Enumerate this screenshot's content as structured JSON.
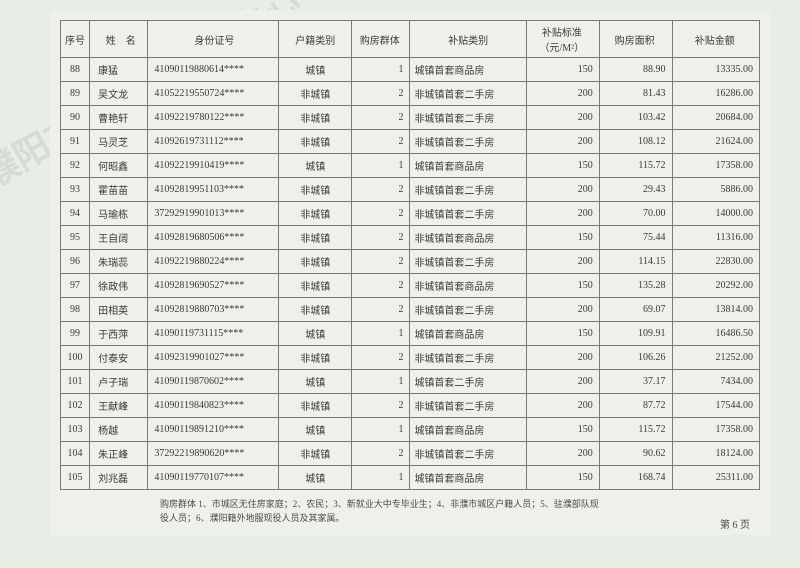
{
  "watermarks": [
    "濮阳市房地产管理中心",
    "濮阳市房地产管理中心",
    "濮阳市房"
  ],
  "headers": {
    "seq": "序号",
    "name": "姓　名",
    "id": "身份证号",
    "hukou": "户籍类别",
    "group": "购房群体",
    "subtype": "补贴类别",
    "std": "补贴标准（元/M²）",
    "area": "购房面积",
    "amt": "补贴金额"
  },
  "rows": [
    {
      "seq": "88",
      "name": "康猛",
      "id": "41090119880614****",
      "hukou": "城镇",
      "group": "1",
      "subtype": "城镇首套商品房",
      "std": "150",
      "area": "88.90",
      "amt": "13335.00"
    },
    {
      "seq": "89",
      "name": "吴文龙",
      "id": "41052219550724****",
      "hukou": "非城镇",
      "group": "2",
      "subtype": "非城镇首套二手房",
      "std": "200",
      "area": "81.43",
      "amt": "16286.00"
    },
    {
      "seq": "90",
      "name": "曹艳轩",
      "id": "41092219780122****",
      "hukou": "非城镇",
      "group": "2",
      "subtype": "非城镇首套二手房",
      "std": "200",
      "area": "103.42",
      "amt": "20684.00"
    },
    {
      "seq": "91",
      "name": "马灵芝",
      "id": "41092619731112****",
      "hukou": "非城镇",
      "group": "2",
      "subtype": "非城镇首套二手房",
      "std": "200",
      "area": "108.12",
      "amt": "21624.00"
    },
    {
      "seq": "92",
      "name": "何昭鑫",
      "id": "41092219910419****",
      "hukou": "城镇",
      "group": "1",
      "subtype": "城镇首套商品房",
      "std": "150",
      "area": "115.72",
      "amt": "17358.00"
    },
    {
      "seq": "93",
      "name": "霍苗苗",
      "id": "41092819951103****",
      "hukou": "非城镇",
      "group": "2",
      "subtype": "非城镇首套二手房",
      "std": "200",
      "area": "29.43",
      "amt": "5886.00"
    },
    {
      "seq": "94",
      "name": "马瑜栋",
      "id": "37292919901013****",
      "hukou": "非城镇",
      "group": "2",
      "subtype": "非城镇首套二手房",
      "std": "200",
      "area": "70.00",
      "amt": "14000.00"
    },
    {
      "seq": "95",
      "name": "王自阔",
      "id": "41092819680506****",
      "hukou": "非城镇",
      "group": "2",
      "subtype": "非城镇首套商品房",
      "std": "150",
      "area": "75.44",
      "amt": "11316.00"
    },
    {
      "seq": "96",
      "name": "朱瑞蕊",
      "id": "41092219880224****",
      "hukou": "非城镇",
      "group": "2",
      "subtype": "非城镇首套二手房",
      "std": "200",
      "area": "114.15",
      "amt": "22830.00"
    },
    {
      "seq": "97",
      "name": "徐政伟",
      "id": "41092819690527****",
      "hukou": "非城镇",
      "group": "2",
      "subtype": "非城镇首套商品房",
      "std": "150",
      "area": "135.28",
      "amt": "20292.00"
    },
    {
      "seq": "98",
      "name": "田相英",
      "id": "41092819880703****",
      "hukou": "非城镇",
      "group": "2",
      "subtype": "非城镇首套二手房",
      "std": "200",
      "area": "69.07",
      "amt": "13814.00"
    },
    {
      "seq": "99",
      "name": "于西萍",
      "id": "41090119731115****",
      "hukou": "城镇",
      "group": "1",
      "subtype": "城镇首套商品房",
      "std": "150",
      "area": "109.91",
      "amt": "16486.50"
    },
    {
      "seq": "100",
      "name": "付泰安",
      "id": "41092319901027****",
      "hukou": "非城镇",
      "group": "2",
      "subtype": "非城镇首套二手房",
      "std": "200",
      "area": "106.26",
      "amt": "21252.00"
    },
    {
      "seq": "101",
      "name": "卢子瑞",
      "id": "41090119870602****",
      "hukou": "城镇",
      "group": "1",
      "subtype": "城镇首套二手房",
      "std": "200",
      "area": "37.17",
      "amt": "7434.00"
    },
    {
      "seq": "102",
      "name": "王献峰",
      "id": "41090119840823****",
      "hukou": "非城镇",
      "group": "2",
      "subtype": "非城镇首套二手房",
      "std": "200",
      "area": "87.72",
      "amt": "17544.00"
    },
    {
      "seq": "103",
      "name": "杨越",
      "id": "41090119891210****",
      "hukou": "城镇",
      "group": "1",
      "subtype": "城镇首套商品房",
      "std": "150",
      "area": "115.72",
      "amt": "17358.00"
    },
    {
      "seq": "104",
      "name": "朱正峰",
      "id": "37292219890620****",
      "hukou": "非城镇",
      "group": "2",
      "subtype": "非城镇首套二手房",
      "std": "200",
      "area": "90.62",
      "amt": "18124.00"
    },
    {
      "seq": "105",
      "name": "刘兆磊",
      "id": "41090119770107****",
      "hukou": "城镇",
      "group": "1",
      "subtype": "城镇首套商品房",
      "std": "150",
      "area": "168.74",
      "amt": "25311.00"
    }
  ],
  "footnote1": "购房群体 1、市城区无住房家庭；2、农民；3、新就业大中专毕业生；4、非濮市城区户籍人员；5、驻濮部队现",
  "footnote2": "役人员；6、濮阳籍外地服现役人员及其家属。",
  "pagenum": "第 6 页"
}
